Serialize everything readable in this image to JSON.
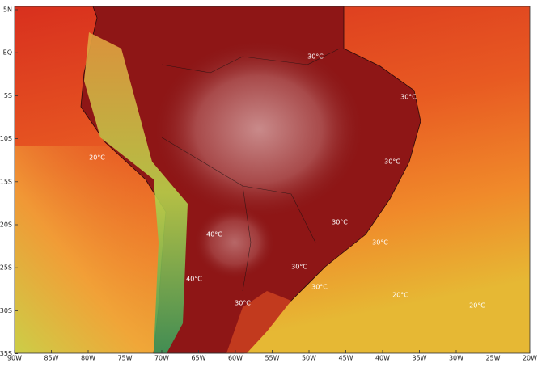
{
  "map": {
    "lat_labels": [
      "5N",
      "EQ",
      "5S",
      "10S",
      "15S",
      "20S",
      "25S",
      "30S",
      "35S"
    ],
    "lon_labels": [
      "90W",
      "85W",
      "80W",
      "75W",
      "70W",
      "65W",
      "60W",
      "55W",
      "50W",
      "45W",
      "40W",
      "35W",
      "30W",
      "25W",
      "20W"
    ],
    "contour_labels": [
      "30°C",
      "30°C",
      "30°C",
      "30°C",
      "30°C",
      "30°C",
      "30°C",
      "30°C",
      "20°C",
      "20°C",
      "20°C",
      "40°C",
      "40°C"
    ]
  }
}
